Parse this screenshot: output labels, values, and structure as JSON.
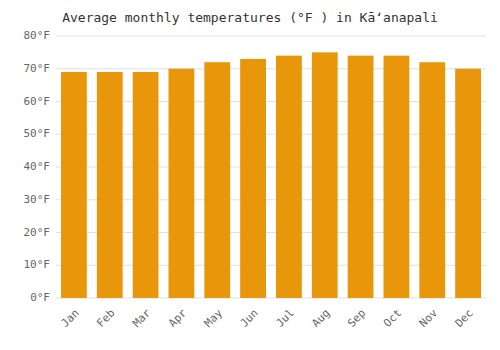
{
  "chart_data": {
    "type": "bar",
    "title": "Average monthly temperatures (°F ) in Kāʻanapali",
    "categories": [
      "Jan",
      "Feb",
      "Mar",
      "Apr",
      "May",
      "Jun",
      "Jul",
      "Aug",
      "Sep",
      "Oct",
      "Nov",
      "Dec"
    ],
    "values": [
      69,
      69,
      69,
      70,
      72,
      73,
      74,
      75,
      74,
      74,
      72,
      70
    ],
    "color": "#E8960A",
    "ylim": [
      0,
      80
    ],
    "yticks": [
      {
        "value": 0,
        "label": "0°F"
      },
      {
        "value": 10,
        "label": "10°F"
      },
      {
        "value": 20,
        "label": "20°F"
      },
      {
        "value": 30,
        "label": "30°F"
      },
      {
        "value": 40,
        "label": "40°F"
      },
      {
        "value": 50,
        "label": "50°F"
      },
      {
        "value": 60,
        "label": "60°F"
      },
      {
        "value": 70,
        "label": "70°F"
      },
      {
        "value": 80,
        "label": "80°F"
      }
    ],
    "grid": true
  }
}
